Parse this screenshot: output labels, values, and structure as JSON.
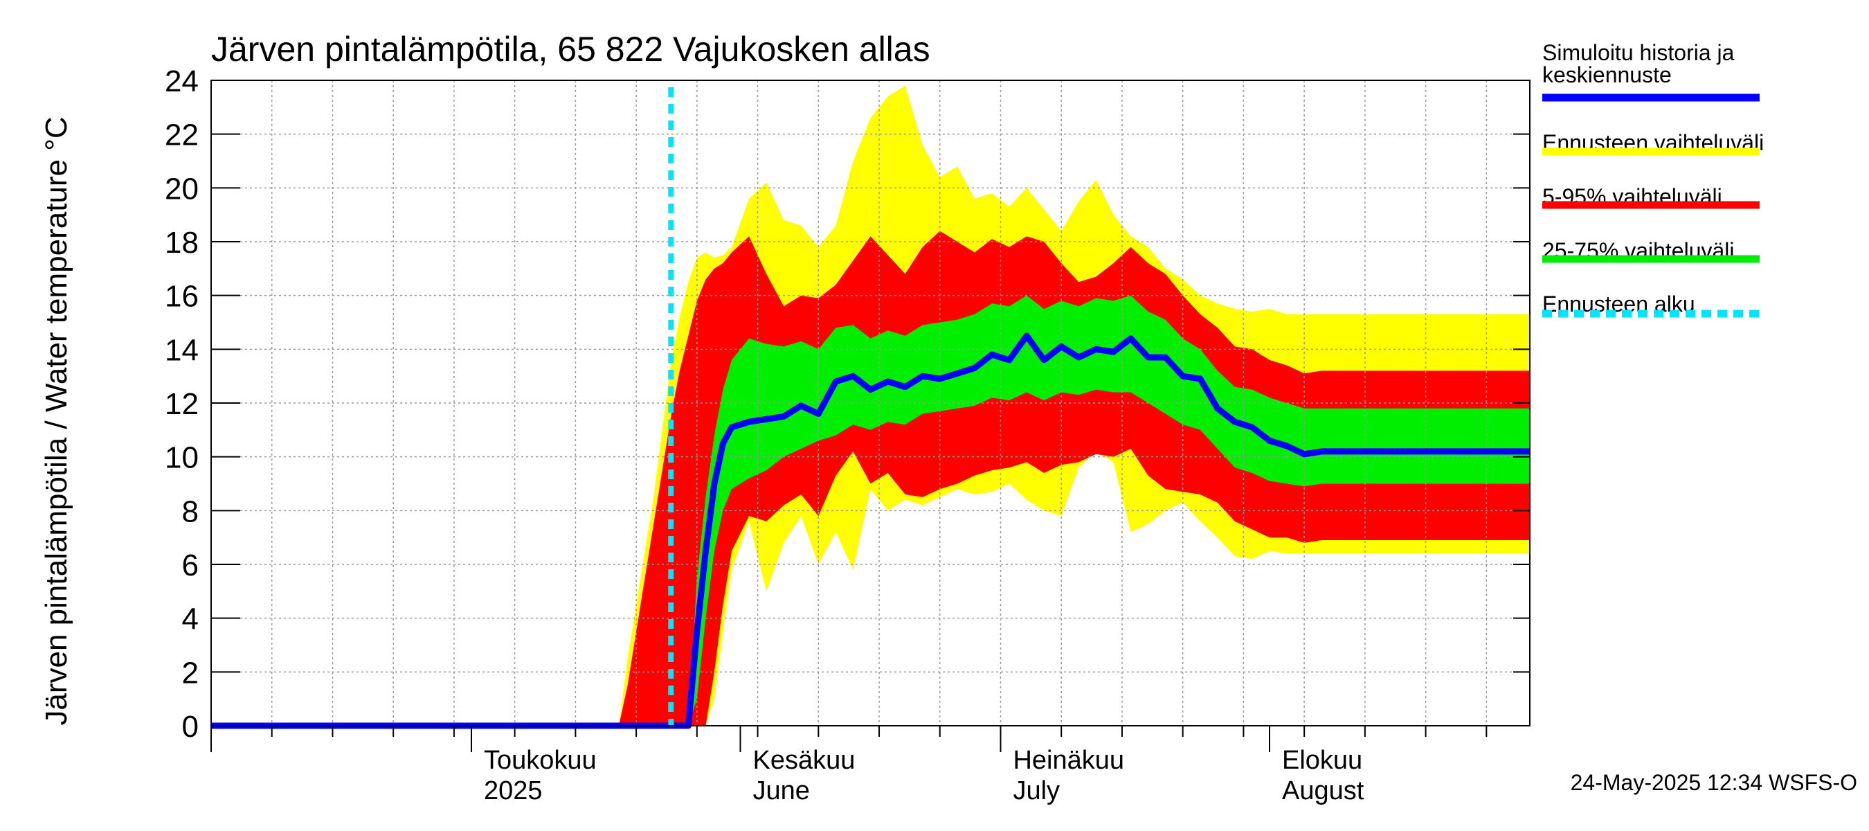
{
  "chart_data": {
    "type": "area",
    "title": "Järven pintalämpötila, 65 822 Vajukosken allas",
    "ylabel": "Järven pintalämpötila / Water temperature °C",
    "xlabel": "",
    "ylim": [
      0,
      24
    ],
    "yticks": [
      0,
      2,
      4,
      6,
      8,
      10,
      12,
      14,
      16,
      18,
      20,
      22,
      24
    ],
    "x_unit": "days since 2025-04-01",
    "xlim": [
      0,
      152
    ],
    "month_ticks": [
      {
        "day": 0,
        "line1": "",
        "line2": ""
      },
      {
        "day": 30,
        "line1": "Toukokuu",
        "line2": "2025"
      },
      {
        "day": 61,
        "line1": "Kesäkuu",
        "line2": "June"
      },
      {
        "day": 91,
        "line1": "Heinäkuu",
        "line2": "July"
      },
      {
        "day": 122,
        "line1": "Elokuu",
        "line2": "August"
      }
    ],
    "forecast_start_day": 53,
    "x": [
      0,
      46,
      47,
      48,
      49,
      50,
      51,
      52,
      53,
      54,
      55,
      56,
      57,
      58,
      59,
      60,
      62,
      64,
      66,
      68,
      70,
      72,
      74,
      76,
      78,
      80,
      82,
      84,
      86,
      88,
      90,
      92,
      94,
      96,
      98,
      100,
      102,
      104,
      106,
      108,
      110,
      112,
      114,
      116,
      118,
      120,
      122,
      124,
      126,
      128,
      130,
      132,
      134,
      136,
      138,
      140,
      142,
      144,
      146,
      148,
      150,
      152
    ],
    "series": [
      {
        "name": "Simuloitu historia ja keskiennuste",
        "role": "median",
        "color": "#0000ff",
        "values": [
          0,
          0,
          0,
          0,
          0,
          0,
          0,
          0,
          0,
          0,
          0,
          3.5,
          6.5,
          9.0,
          10.5,
          11.1,
          11.3,
          11.4,
          11.5,
          11.9,
          11.6,
          12.8,
          13.0,
          12.5,
          12.8,
          12.6,
          13.0,
          12.9,
          13.1,
          13.3,
          13.8,
          13.6,
          14.5,
          13.6,
          14.1,
          13.7,
          14.0,
          13.9,
          14.4,
          13.7,
          13.7,
          13.0,
          12.9,
          11.8,
          11.3,
          11.1,
          10.6,
          10.4,
          10.1,
          10.2,
          10.2,
          10.2,
          10.2,
          10.2,
          10.2,
          10.2,
          10.2,
          10.2,
          10.2,
          10.2,
          10.2,
          10.2
        ]
      },
      {
        "name": "25-75% vaihteluväli",
        "role": "band",
        "color": "#00ee00",
        "lower": [
          0,
          0,
          0,
          0,
          0,
          0,
          0,
          0,
          0,
          0,
          0,
          1.0,
          4.0,
          6.5,
          8.0,
          8.8,
          9.2,
          9.5,
          10.0,
          10.3,
          10.6,
          10.8,
          11.2,
          11.0,
          11.3,
          11.2,
          11.6,
          11.7,
          11.8,
          11.9,
          12.2,
          12.1,
          12.4,
          12.1,
          12.4,
          12.3,
          12.5,
          12.4,
          12.4,
          12.0,
          11.6,
          11.2,
          11.0,
          10.3,
          9.6,
          9.4,
          9.1,
          9.0,
          8.9,
          9.0,
          9.0,
          9.0,
          9.0,
          9.0,
          9.0,
          9.0,
          9.0,
          9.0,
          9.0,
          9.0,
          9.0,
          9.0
        ],
        "upper": [
          0,
          0,
          0,
          0,
          0,
          0,
          0,
          0,
          0,
          0,
          0,
          5.5,
          8.5,
          10.8,
          12.5,
          13.6,
          14.4,
          14.2,
          14.1,
          14.3,
          14.0,
          14.8,
          14.9,
          14.4,
          14.7,
          14.5,
          14.9,
          15.0,
          15.1,
          15.3,
          15.7,
          15.6,
          16.0,
          15.5,
          15.8,
          15.6,
          15.9,
          15.8,
          16.0,
          15.4,
          15.1,
          14.4,
          14.0,
          13.2,
          12.6,
          12.5,
          12.2,
          12.0,
          11.8,
          11.8,
          11.8,
          11.8,
          11.8,
          11.8,
          11.8,
          11.8,
          11.8,
          11.8,
          11.8,
          11.8,
          11.8,
          11.8
        ]
      },
      {
        "name": "5-95% vaihteluväli",
        "role": "band",
        "color": "#ff0000",
        "lower": [
          0,
          0,
          0,
          0,
          0,
          0,
          0,
          0,
          0,
          0,
          0,
          0,
          0,
          2.0,
          4.5,
          6.5,
          7.8,
          7.6,
          8.2,
          8.6,
          7.8,
          9.3,
          10.2,
          9.0,
          9.4,
          8.6,
          8.5,
          8.8,
          9.0,
          9.3,
          9.5,
          9.6,
          9.8,
          9.4,
          9.7,
          9.8,
          10.1,
          10.0,
          10.3,
          9.3,
          8.8,
          8.7,
          8.6,
          8.3,
          7.6,
          7.3,
          7.0,
          7.0,
          6.8,
          6.9,
          6.9,
          6.9,
          6.9,
          6.9,
          6.9,
          6.9,
          6.9,
          6.9,
          6.9,
          6.9,
          6.9,
          6.9
        ],
        "upper": [
          0,
          0,
          0,
          1.5,
          3.5,
          5.5,
          7.5,
          9.5,
          11.5,
          13.2,
          14.5,
          15.8,
          16.6,
          17.0,
          17.2,
          17.6,
          18.2,
          16.8,
          15.6,
          16.0,
          15.9,
          16.4,
          17.3,
          18.2,
          17.5,
          16.8,
          17.8,
          18.4,
          18.0,
          17.6,
          18.1,
          17.8,
          18.2,
          18.0,
          17.2,
          16.5,
          16.7,
          17.2,
          17.8,
          17.2,
          16.8,
          16.0,
          15.3,
          14.8,
          14.1,
          14.0,
          13.6,
          13.4,
          13.1,
          13.2,
          13.2,
          13.2,
          13.2,
          13.2,
          13.2,
          13.2,
          13.2,
          13.2,
          13.2,
          13.2,
          13.2,
          13.2
        ]
      },
      {
        "name": "Ennusteen vaihteluväli",
        "role": "band",
        "color": "#ffff00",
        "lower": [
          0,
          0,
          0,
          0,
          0,
          0,
          0,
          0,
          0,
          0,
          0,
          0,
          0,
          1.0,
          3.5,
          5.8,
          7.6,
          5.0,
          6.8,
          7.8,
          6.0,
          7.2,
          5.8,
          8.8,
          8.0,
          8.4,
          8.2,
          8.5,
          8.8,
          8.6,
          8.7,
          9.0,
          8.4,
          8.0,
          7.8,
          9.6,
          10.2,
          9.8,
          7.2,
          7.5,
          8.0,
          8.3,
          7.6,
          7.0,
          6.3,
          6.2,
          6.5,
          6.4,
          6.4,
          6.4,
          6.4,
          6.4,
          6.4,
          6.4,
          6.4,
          6.4,
          6.4,
          6.4,
          6.4,
          6.4,
          6.4,
          6.4
        ],
        "upper": [
          0,
          0,
          0,
          2.5,
          4.5,
          6.5,
          8.5,
          11.0,
          13.5,
          15.2,
          16.5,
          17.4,
          17.6,
          17.4,
          17.5,
          17.8,
          19.6,
          20.2,
          18.8,
          18.6,
          17.8,
          18.6,
          21.0,
          22.6,
          23.4,
          23.8,
          21.6,
          20.4,
          20.8,
          19.6,
          19.8,
          19.3,
          20.0,
          19.2,
          18.4,
          19.5,
          20.3,
          19.0,
          18.2,
          17.8,
          17.0,
          16.6,
          16.0,
          15.7,
          15.5,
          15.4,
          15.5,
          15.3,
          15.3,
          15.3,
          15.3,
          15.3,
          15.3,
          15.3,
          15.3,
          15.3,
          15.3,
          15.3,
          15.3,
          15.3,
          15.3,
          15.3
        ]
      }
    ],
    "legend": {
      "placement": "right",
      "items": [
        {
          "label": "Simuloitu historia ja keskiennuste",
          "line1": "Simuloitu historia ja",
          "line2": "keskiennuste",
          "color": "#0000ff",
          "style": "solid"
        },
        {
          "label": "Ennusteen vaihteluväli",
          "color": "#ffff00",
          "style": "solid"
        },
        {
          "label": "5-95% vaihteluväli",
          "color": "#ff0000",
          "style": "solid"
        },
        {
          "label": "25-75% vaihteluväli",
          "color": "#00ee00",
          "style": "solid"
        },
        {
          "label": "Ennusteen alku",
          "color": "#00e5ff",
          "style": "dashed"
        }
      ]
    },
    "footer": "24-May-2025 12:34 WSFS-O",
    "grid": true
  }
}
